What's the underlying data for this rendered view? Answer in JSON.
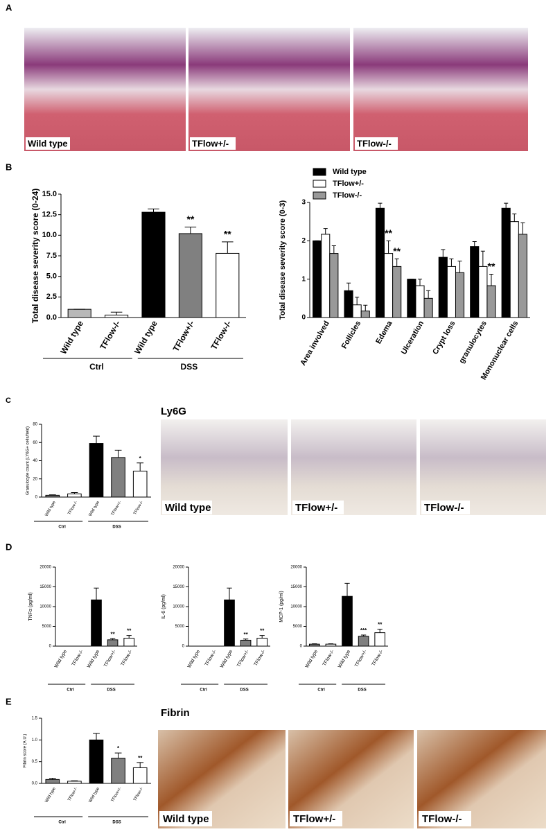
{
  "panel_labels": [
    "A",
    "B",
    "C",
    "D",
    "E"
  ],
  "images": {
    "A": [
      "Wild type",
      "TFlow+/-",
      "TFlow-/-"
    ],
    "C_title": "Ly6G",
    "C": [
      "Wild type",
      "TFlow+/-",
      "TFlow-/-"
    ],
    "E_title": "Fibrin",
    "E": [
      "Wild type",
      "TFlow+/-",
      "TFlow-/-"
    ]
  },
  "chart_data": [
    {
      "type": "bar",
      "y_label": "Total disease severity score (0-24)",
      "categories": [
        "Wild type",
        "TFlow-/-",
        "Wild type",
        "TFlow+/-",
        "TFlow-/-"
      ],
      "values": [
        1.0,
        0.3,
        12.8,
        10.2,
        7.8
      ],
      "errors": [
        0,
        0.35,
        0.4,
        0.8,
        1.4
      ],
      "colors": [
        "#b8b8b8",
        "#ffffff",
        "#000000",
        "#808080",
        "#ffffff"
      ],
      "annotations": [
        null,
        null,
        null,
        "**",
        "**"
      ],
      "group_labels": [
        "Ctrl",
        "DSS"
      ],
      "ylim": [
        0,
        15
      ],
      "yticks": [
        {
          "value": 0,
          "label": "0.0"
        },
        2.5,
        {
          "value": 5,
          "label": "5.0"
        },
        7.5,
        {
          "value": 10,
          "label": "10.0"
        },
        12.5,
        {
          "value": 15,
          "label": "15.0"
        }
      ]
    },
    {
      "type": "bar",
      "y_label": "Total disease severity score (0-3)",
      "categories": [
        "Area involved",
        "Follicles",
        "Edema",
        "Ulceration",
        "Crypt loss",
        "granulocytes",
        "Mononuclear cells"
      ],
      "series": [
        {
          "name": "Wild type",
          "color": "#000000",
          "values": [
            2.0,
            0.7,
            2.85,
            1.0,
            1.57,
            1.85,
            2.85
          ],
          "errors": [
            0,
            0.2,
            0.13,
            0,
            0.2,
            0.13,
            0.13
          ],
          "annotations": [
            null,
            null,
            null,
            null,
            null,
            null,
            null
          ]
        },
        {
          "name": "TFlow+/-",
          "color": "#ffffff",
          "values": [
            2.17,
            0.33,
            1.67,
            0.83,
            1.33,
            1.33,
            2.5
          ],
          "errors": [
            0.15,
            0.2,
            0.33,
            0.17,
            0.2,
            0.4,
            0.2
          ],
          "annotations": [
            null,
            null,
            "**",
            null,
            null,
            null,
            null
          ]
        },
        {
          "name": "TFlow-/-",
          "color": "#999999",
          "values": [
            1.67,
            0.17,
            1.33,
            0.5,
            1.17,
            0.83,
            2.17
          ],
          "errors": [
            0.2,
            0.15,
            0.2,
            0.2,
            0.3,
            0.3,
            0.3
          ],
          "annotations": [
            null,
            null,
            "**",
            null,
            null,
            "**",
            null
          ]
        }
      ],
      "ylim": [
        0,
        3
      ],
      "yticks": [
        0,
        1,
        2,
        3
      ]
    },
    {
      "type": "bar",
      "y_label": "Granulocyte count (LY6G+ cells/field)",
      "categories": [
        "Wild type",
        "TFlow-/-",
        "Wild type",
        "TFlow+/-",
        "TFlow-/-"
      ],
      "values": [
        2,
        3.5,
        59,
        43.5,
        28.5
      ],
      "errors": [
        0.5,
        1.5,
        8,
        8,
        9
      ],
      "colors": [
        "#808080",
        "#ffffff",
        "#000000",
        "#808080",
        "#ffffff"
      ],
      "annotations": [
        null,
        null,
        null,
        null,
        "*"
      ],
      "group_labels": [
        "Ctrl",
        "DSS"
      ],
      "ylim": [
        0,
        80
      ],
      "yticks": [
        0,
        20,
        40,
        60,
        80
      ]
    },
    {
      "type": "bar",
      "y_label": "TNFα (pg/ml)",
      "categories": [
        "Wild type",
        "TFlow-/-",
        "Wild type",
        "TFlow+/-",
        "TFlow-/-"
      ],
      "values": [
        0,
        0,
        11700,
        1600,
        2000
      ],
      "errors": [
        0,
        0,
        3000,
        300,
        700
      ],
      "colors": [
        "#808080",
        "#ffffff",
        "#000000",
        "#808080",
        "#ffffff"
      ],
      "annotations": [
        null,
        null,
        null,
        "**",
        "**"
      ],
      "group_labels": [
        "Ctrl",
        "DSS"
      ],
      "ylim": [
        0,
        20000
      ],
      "yticks": [
        0,
        5000,
        10000,
        15000,
        20000
      ]
    },
    {
      "type": "bar",
      "y_label": "IL-6 (pg/ml)",
      "categories": [
        "Wild type",
        "TFlow-/-",
        "Wild type",
        "TFlow+/-",
        "TFlow-/-"
      ],
      "values": [
        0,
        0,
        11700,
        1500,
        2000
      ],
      "errors": [
        0,
        0,
        3000,
        300,
        700
      ],
      "colors": [
        "#808080",
        "#ffffff",
        "#000000",
        "#808080",
        "#ffffff"
      ],
      "annotations": [
        null,
        null,
        null,
        "**",
        "**"
      ],
      "group_labels": [
        "Ctrl",
        "DSS"
      ],
      "ylim": [
        0,
        20000
      ],
      "yticks": [
        0,
        5000,
        10000,
        15000,
        20000
      ]
    },
    {
      "type": "bar",
      "y_label": "MCP-1 (pg/ml)",
      "categories": [
        "Wild type",
        "TFlow-/-",
        "Wild type",
        "TFlow+/-",
        "TFlow-/-"
      ],
      "values": [
        500,
        500,
        12600,
        2500,
        3400
      ],
      "errors": [
        100,
        100,
        3300,
        300,
        900
      ],
      "colors": [
        "#808080",
        "#ffffff",
        "#000000",
        "#808080",
        "#ffffff"
      ],
      "annotations": [
        null,
        null,
        null,
        "***",
        "**"
      ],
      "group_labels": [
        "Ctrl",
        "DSS"
      ],
      "ylim": [
        0,
        20000
      ],
      "yticks": [
        0,
        5000,
        10000,
        15000,
        20000
      ]
    },
    {
      "type": "bar",
      "y_label": "Fibrin score (A.U.)",
      "categories": [
        "Wild type",
        "TFlow-/-",
        "Wild type",
        "TFlow+/-",
        "TFlow-/-"
      ],
      "values": [
        0.09,
        0.05,
        1.0,
        0.58,
        0.36
      ],
      "errors": [
        0.03,
        0.01,
        0.15,
        0.12,
        0.12
      ],
      "colors": [
        "#808080",
        "#ffffff",
        "#000000",
        "#808080",
        "#ffffff"
      ],
      "annotations": [
        null,
        null,
        null,
        "*",
        "**"
      ],
      "group_labels": [
        "Ctrl",
        "DSS"
      ],
      "ylim": [
        0,
        1.5
      ],
      "yticks": [
        {
          "value": 0,
          "label": "0.0"
        },
        0.5,
        {
          "value": 1,
          "label": "1.0"
        },
        1.5
      ]
    }
  ]
}
